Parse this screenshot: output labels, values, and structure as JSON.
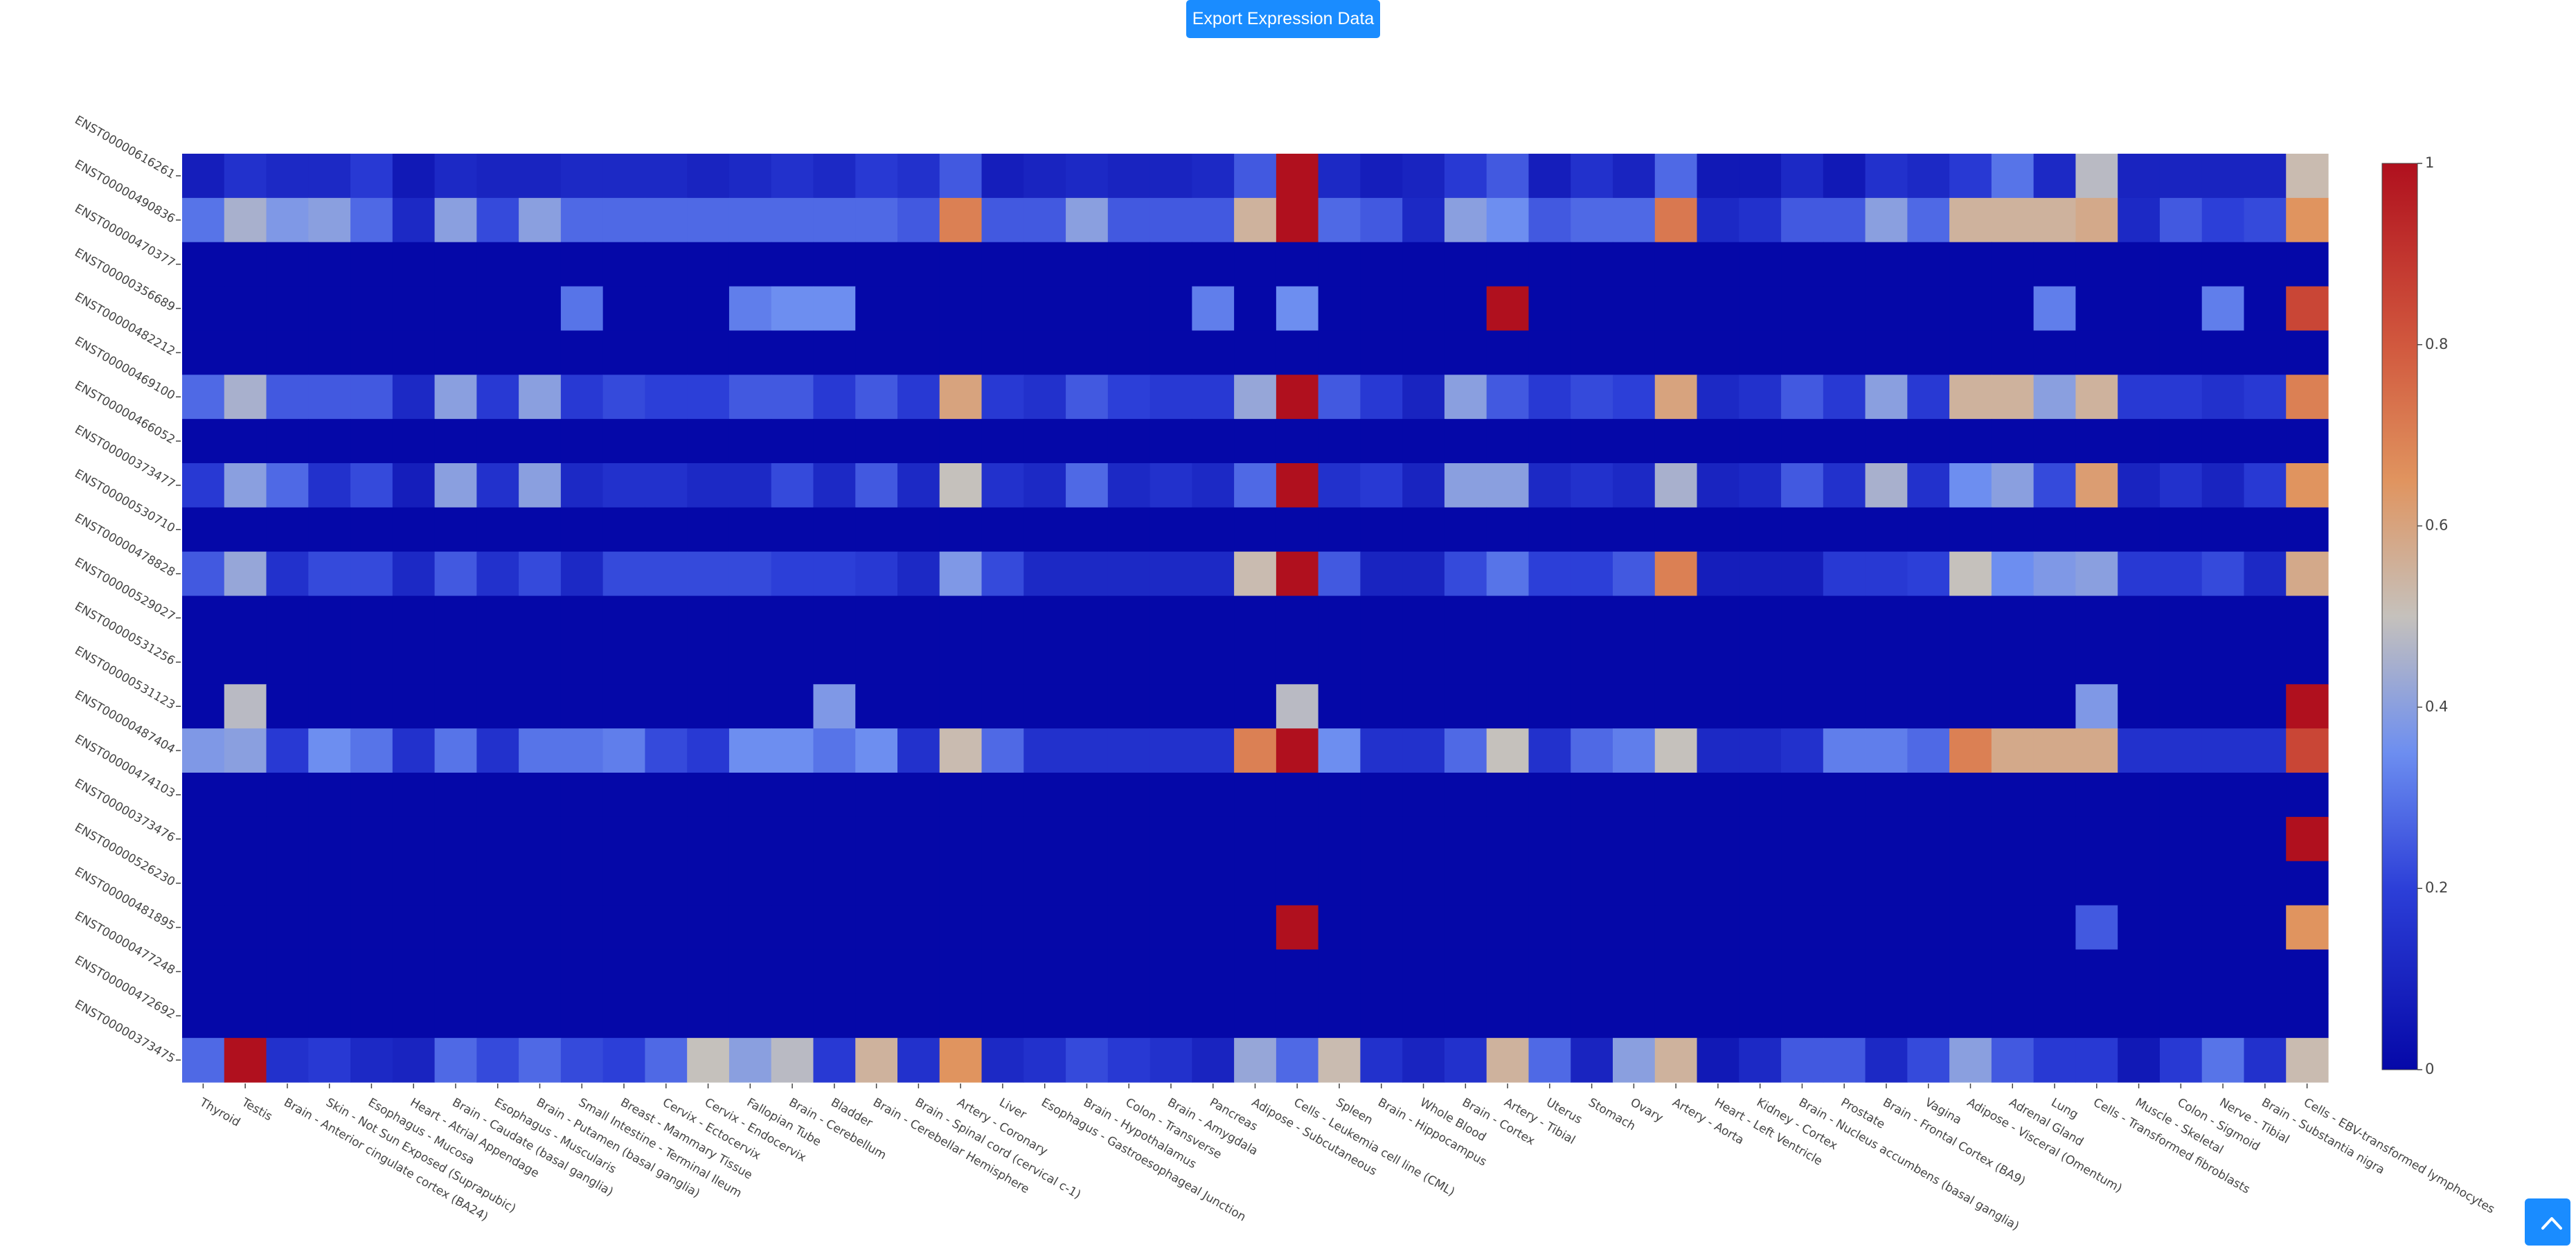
{
  "header": {
    "export_label": "Export Expression Data"
  },
  "scroll_top": {
    "icon": "chevron-up-icon"
  },
  "chart_data": {
    "type": "heatmap",
    "colorscale": {
      "min_color": "#0508a8",
      "mid_color": "#c5c1bc",
      "max_color": "#b0101e"
    },
    "zlim": [
      0,
      1
    ],
    "colorbar_ticks": [
      "0",
      "0.2",
      "0.4",
      "0.6",
      "0.8",
      "1"
    ],
    "columns": [
      "Thyroid",
      "Testis",
      "Brain - Anterior cingulate cortex (BA24)",
      "Skin - Not Sun Exposed (Suprapubic)",
      "Esophagus - Mucosa",
      "Heart - Atrial Appendage",
      "Brain - Caudate (basal ganglia)",
      "Esophagus - Muscularis",
      "Brain - Putamen (basal ganglia)",
      "Small Intestine - Terminal Ileum",
      "Breast - Mammary Tissue",
      "Cervix - Ectocervix",
      "Cervix - Endocervix",
      "Fallopian Tube",
      "Brain - Cerebellum",
      "Bladder",
      "Brain - Cerebellar Hemisphere",
      "Brain - Spinal cord (cervical c-1)",
      "Artery - Coronary",
      "Liver",
      "Esophagus - Gastroesophageal Junction",
      "Brain - Hypothalamus",
      "Colon - Transverse",
      "Brain - Amygdala",
      "Pancreas",
      "Adipose - Subcutaneous",
      "Cells - Leukemia cell line (CML)",
      "Spleen",
      "Brain - Hippocampus",
      "Whole Blood",
      "Brain - Cortex",
      "Artery - Tibial",
      "Uterus",
      "Stomach",
      "Ovary",
      "Artery - Aorta",
      "Heart - Left Ventricle",
      "Kidney - Cortex",
      "Brain - Nucleus accumbens (basal ganglia)",
      "Prostate",
      "Brain - Frontal Cortex (BA9)",
      "Vagina",
      "Adipose - Visceral (Omentum)",
      "Adrenal Gland",
      "Lung",
      "Cells - Transformed fibroblasts",
      "Muscle - Skeletal",
      "Colon - Sigmoid",
      "Nerve - Tibial",
      "Brain - Substantia nigra",
      "Cells - EBV-transformed lymphocytes"
    ],
    "rows": [
      "ENST00000616261",
      "ENST00000490836",
      "ENST00000470377",
      "ENST00000356689",
      "ENST00000482212",
      "ENST00000469100",
      "ENST00000466052",
      "ENST00000373477",
      "ENST00000530710",
      "ENST00000478828",
      "ENST00000529027",
      "ENST00000531256",
      "ENST00000531123",
      "ENST00000487404",
      "ENST00000474103",
      "ENST00000373476",
      "ENST00000526230",
      "ENST00000481895",
      "ENST00000477248",
      "ENST00000472692",
      "ENST00000373475"
    ],
    "values": [
      [
        0.08,
        0.15,
        0.12,
        0.12,
        0.18,
        0.06,
        0.12,
        0.1,
        0.1,
        0.12,
        0.12,
        0.12,
        0.1,
        0.12,
        0.15,
        0.12,
        0.18,
        0.15,
        0.25,
        0.08,
        0.1,
        0.12,
        0.1,
        0.1,
        0.12,
        0.25,
        1.0,
        0.12,
        0.08,
        0.1,
        0.18,
        0.25,
        0.08,
        0.15,
        0.1,
        0.28,
        0.06,
        0.06,
        0.12,
        0.06,
        0.15,
        0.12,
        0.18,
        0.3,
        0.12,
        0.48,
        0.1,
        0.1,
        0.1,
        0.1,
        0.52
      ],
      [
        0.3,
        0.45,
        0.38,
        0.4,
        0.28,
        0.12,
        0.4,
        0.22,
        0.4,
        0.28,
        0.28,
        0.28,
        0.28,
        0.28,
        0.28,
        0.28,
        0.28,
        0.25,
        0.7,
        0.25,
        0.25,
        0.4,
        0.25,
        0.25,
        0.25,
        0.55,
        1.0,
        0.28,
        0.25,
        0.12,
        0.4,
        0.35,
        0.25,
        0.28,
        0.28,
        0.72,
        0.12,
        0.15,
        0.25,
        0.25,
        0.4,
        0.28,
        0.55,
        0.55,
        0.55,
        0.58,
        0.12,
        0.25,
        0.2,
        0.22,
        0.65
      ],
      [
        0.0,
        0.0,
        0.0,
        0.0,
        0.0,
        0.0,
        0.0,
        0.0,
        0.0,
        0.0,
        0.0,
        0.0,
        0.0,
        0.0,
        0.0,
        0.0,
        0.0,
        0.0,
        0.0,
        0.0,
        0.0,
        0.0,
        0.0,
        0.0,
        0.0,
        0.0,
        0.0,
        0.0,
        0.0,
        0.0,
        0.0,
        0.0,
        0.0,
        0.0,
        0.0,
        0.0,
        0.0,
        0.0,
        0.0,
        0.0,
        0.0,
        0.0,
        0.0,
        0.0,
        0.0,
        0.0,
        0.0,
        0.0,
        0.0,
        0.0,
        0.0
      ],
      [
        0.0,
        0.0,
        0.0,
        0.0,
        0.0,
        0.0,
        0.0,
        0.0,
        0.0,
        0.3,
        0.0,
        0.0,
        0.0,
        0.32,
        0.35,
        0.35,
        0.0,
        0.0,
        0.0,
        0.0,
        0.0,
        0.0,
        0.0,
        0.0,
        0.32,
        0.0,
        0.35,
        0.0,
        0.0,
        0.0,
        0.0,
        1.0,
        0.0,
        0.0,
        0.0,
        0.0,
        0.0,
        0.0,
        0.0,
        0.0,
        0.0,
        0.0,
        0.0,
        0.0,
        0.32,
        0.0,
        0.0,
        0.0,
        0.32,
        0.0,
        0.85
      ],
      [
        0.0,
        0.0,
        0.0,
        0.0,
        0.0,
        0.0,
        0.0,
        0.0,
        0.0,
        0.0,
        0.0,
        0.0,
        0.0,
        0.0,
        0.0,
        0.0,
        0.0,
        0.0,
        0.0,
        0.0,
        0.0,
        0.0,
        0.0,
        0.0,
        0.0,
        0.0,
        0.0,
        0.0,
        0.0,
        0.0,
        0.0,
        0.0,
        0.0,
        0.0,
        0.0,
        0.0,
        0.0,
        0.0,
        0.0,
        0.0,
        0.0,
        0.0,
        0.0,
        0.0,
        0.0,
        0.0,
        0.0,
        0.0,
        0.0,
        0.0,
        0.0
      ],
      [
        0.28,
        0.45,
        0.25,
        0.25,
        0.25,
        0.12,
        0.4,
        0.18,
        0.4,
        0.18,
        0.22,
        0.2,
        0.2,
        0.25,
        0.25,
        0.18,
        0.25,
        0.18,
        0.6,
        0.18,
        0.15,
        0.25,
        0.2,
        0.18,
        0.18,
        0.42,
        1.0,
        0.25,
        0.18,
        0.1,
        0.4,
        0.25,
        0.18,
        0.22,
        0.2,
        0.6,
        0.12,
        0.15,
        0.25,
        0.18,
        0.4,
        0.18,
        0.55,
        0.55,
        0.4,
        0.55,
        0.18,
        0.18,
        0.15,
        0.18,
        0.7
      ],
      [
        0.0,
        0.0,
        0.0,
        0.0,
        0.0,
        0.0,
        0.0,
        0.0,
        0.0,
        0.0,
        0.0,
        0.0,
        0.0,
        0.0,
        0.0,
        0.0,
        0.0,
        0.0,
        0.0,
        0.0,
        0.0,
        0.0,
        0.0,
        0.0,
        0.0,
        0.0,
        0.0,
        0.0,
        0.0,
        0.0,
        0.0,
        0.0,
        0.0,
        0.0,
        0.0,
        0.0,
        0.0,
        0.0,
        0.0,
        0.0,
        0.0,
        0.0,
        0.0,
        0.0,
        0.0,
        0.0,
        0.0,
        0.0,
        0.0,
        0.0,
        0.0
      ],
      [
        0.18,
        0.4,
        0.28,
        0.15,
        0.22,
        0.08,
        0.4,
        0.15,
        0.4,
        0.12,
        0.15,
        0.15,
        0.12,
        0.12,
        0.22,
        0.12,
        0.25,
        0.12,
        0.5,
        0.15,
        0.12,
        0.28,
        0.12,
        0.15,
        0.12,
        0.28,
        1.0,
        0.15,
        0.18,
        0.1,
        0.4,
        0.4,
        0.12,
        0.15,
        0.12,
        0.45,
        0.1,
        0.12,
        0.25,
        0.15,
        0.45,
        0.15,
        0.35,
        0.4,
        0.22,
        0.62,
        0.1,
        0.15,
        0.1,
        0.18,
        0.65
      ],
      [
        0.0,
        0.0,
        0.0,
        0.0,
        0.0,
        0.0,
        0.0,
        0.0,
        0.0,
        0.0,
        0.0,
        0.0,
        0.0,
        0.0,
        0.0,
        0.0,
        0.0,
        0.0,
        0.0,
        0.0,
        0.0,
        0.0,
        0.0,
        0.0,
        0.0,
        0.0,
        0.0,
        0.0,
        0.0,
        0.0,
        0.0,
        0.0,
        0.0,
        0.0,
        0.0,
        0.0,
        0.0,
        0.0,
        0.0,
        0.0,
        0.0,
        0.0,
        0.0,
        0.0,
        0.0,
        0.0,
        0.0,
        0.0,
        0.0,
        0.0,
        0.0
      ],
      [
        0.25,
        0.42,
        0.15,
        0.22,
        0.22,
        0.12,
        0.25,
        0.15,
        0.22,
        0.12,
        0.22,
        0.22,
        0.22,
        0.22,
        0.2,
        0.2,
        0.18,
        0.12,
        0.38,
        0.22,
        0.12,
        0.12,
        0.12,
        0.12,
        0.12,
        0.52,
        1.0,
        0.25,
        0.1,
        0.1,
        0.22,
        0.3,
        0.2,
        0.2,
        0.25,
        0.7,
        0.08,
        0.08,
        0.08,
        0.18,
        0.18,
        0.2,
        0.5,
        0.35,
        0.38,
        0.4,
        0.18,
        0.18,
        0.22,
        0.12,
        0.58
      ],
      [
        0.0,
        0.0,
        0.0,
        0.0,
        0.0,
        0.0,
        0.0,
        0.0,
        0.0,
        0.0,
        0.0,
        0.0,
        0.0,
        0.0,
        0.0,
        0.0,
        0.0,
        0.0,
        0.0,
        0.0,
        0.0,
        0.0,
        0.0,
        0.0,
        0.0,
        0.0,
        0.0,
        0.0,
        0.0,
        0.0,
        0.0,
        0.0,
        0.0,
        0.0,
        0.0,
        0.0,
        0.0,
        0.0,
        0.0,
        0.0,
        0.0,
        0.0,
        0.0,
        0.0,
        0.0,
        0.0,
        0.0,
        0.0,
        0.0,
        0.0,
        0.0
      ],
      [
        0.0,
        0.0,
        0.0,
        0.0,
        0.0,
        0.0,
        0.0,
        0.0,
        0.0,
        0.0,
        0.0,
        0.0,
        0.0,
        0.0,
        0.0,
        0.0,
        0.0,
        0.0,
        0.0,
        0.0,
        0.0,
        0.0,
        0.0,
        0.0,
        0.0,
        0.0,
        0.0,
        0.0,
        0.0,
        0.0,
        0.0,
        0.0,
        0.0,
        0.0,
        0.0,
        0.0,
        0.0,
        0.0,
        0.0,
        0.0,
        0.0,
        0.0,
        0.0,
        0.0,
        0.0,
        0.0,
        0.0,
        0.0,
        0.0,
        0.0,
        0.0
      ],
      [
        0.0,
        0.48,
        0.0,
        0.0,
        0.0,
        0.0,
        0.0,
        0.0,
        0.0,
        0.0,
        0.0,
        0.0,
        0.0,
        0.0,
        0.0,
        0.38,
        0.0,
        0.0,
        0.0,
        0.0,
        0.0,
        0.0,
        0.0,
        0.0,
        0.0,
        0.0,
        0.48,
        0.0,
        0.0,
        0.0,
        0.0,
        0.0,
        0.0,
        0.0,
        0.0,
        0.0,
        0.0,
        0.0,
        0.0,
        0.0,
        0.0,
        0.0,
        0.0,
        0.0,
        0.0,
        0.38,
        0.0,
        0.0,
        0.0,
        0.0,
        1.0
      ],
      [
        0.38,
        0.4,
        0.18,
        0.35,
        0.3,
        0.15,
        0.3,
        0.15,
        0.3,
        0.3,
        0.32,
        0.22,
        0.18,
        0.35,
        0.35,
        0.3,
        0.35,
        0.15,
        0.52,
        0.28,
        0.15,
        0.15,
        0.15,
        0.15,
        0.15,
        0.7,
        1.0,
        0.35,
        0.15,
        0.15,
        0.28,
        0.5,
        0.15,
        0.28,
        0.32,
        0.5,
        0.12,
        0.12,
        0.15,
        0.32,
        0.32,
        0.28,
        0.7,
        0.58,
        0.58,
        0.58,
        0.15,
        0.15,
        0.15,
        0.15,
        0.85
      ],
      [
        0.0,
        0.0,
        0.0,
        0.0,
        0.0,
        0.0,
        0.0,
        0.0,
        0.0,
        0.0,
        0.0,
        0.0,
        0.0,
        0.0,
        0.0,
        0.0,
        0.0,
        0.0,
        0.0,
        0.0,
        0.0,
        0.0,
        0.0,
        0.0,
        0.0,
        0.0,
        0.0,
        0.0,
        0.0,
        0.0,
        0.0,
        0.0,
        0.0,
        0.0,
        0.0,
        0.0,
        0.0,
        0.0,
        0.0,
        0.0,
        0.0,
        0.0,
        0.0,
        0.0,
        0.0,
        0.0,
        0.0,
        0.0,
        0.0,
        0.0,
        0.0
      ],
      [
        0.0,
        0.0,
        0.0,
        0.0,
        0.0,
        0.0,
        0.0,
        0.0,
        0.0,
        0.0,
        0.0,
        0.0,
        0.0,
        0.0,
        0.0,
        0.0,
        0.0,
        0.0,
        0.0,
        0.0,
        0.0,
        0.0,
        0.0,
        0.0,
        0.0,
        0.0,
        0.0,
        0.0,
        0.0,
        0.0,
        0.0,
        0.0,
        0.0,
        0.0,
        0.0,
        0.0,
        0.0,
        0.0,
        0.0,
        0.0,
        0.0,
        0.0,
        0.0,
        0.0,
        0.0,
        0.0,
        0.0,
        0.0,
        0.0,
        0.0,
        1.0
      ],
      [
        0.0,
        0.0,
        0.0,
        0.0,
        0.0,
        0.0,
        0.0,
        0.0,
        0.0,
        0.0,
        0.0,
        0.0,
        0.0,
        0.0,
        0.0,
        0.0,
        0.0,
        0.0,
        0.0,
        0.0,
        0.0,
        0.0,
        0.0,
        0.0,
        0.0,
        0.0,
        0.0,
        0.0,
        0.0,
        0.0,
        0.0,
        0.0,
        0.0,
        0.0,
        0.0,
        0.0,
        0.0,
        0.0,
        0.0,
        0.0,
        0.0,
        0.0,
        0.0,
        0.0,
        0.0,
        0.0,
        0.0,
        0.0,
        0.0,
        0.0,
        0.0
      ],
      [
        0.0,
        0.0,
        0.0,
        0.0,
        0.0,
        0.0,
        0.0,
        0.0,
        0.0,
        0.0,
        0.0,
        0.0,
        0.0,
        0.0,
        0.0,
        0.0,
        0.0,
        0.0,
        0.0,
        0.0,
        0.0,
        0.0,
        0.0,
        0.0,
        0.0,
        0.0,
        1.0,
        0.0,
        0.0,
        0.0,
        0.0,
        0.0,
        0.0,
        0.0,
        0.0,
        0.0,
        0.0,
        0.0,
        0.0,
        0.0,
        0.0,
        0.0,
        0.0,
        0.0,
        0.0,
        0.25,
        0.0,
        0.0,
        0.0,
        0.0,
        0.65
      ],
      [
        0.0,
        0.0,
        0.0,
        0.0,
        0.0,
        0.0,
        0.0,
        0.0,
        0.0,
        0.0,
        0.0,
        0.0,
        0.0,
        0.0,
        0.0,
        0.0,
        0.0,
        0.0,
        0.0,
        0.0,
        0.0,
        0.0,
        0.0,
        0.0,
        0.0,
        0.0,
        0.0,
        0.0,
        0.0,
        0.0,
        0.0,
        0.0,
        0.0,
        0.0,
        0.0,
        0.0,
        0.0,
        0.0,
        0.0,
        0.0,
        0.0,
        0.0,
        0.0,
        0.0,
        0.0,
        0.0,
        0.0,
        0.0,
        0.0,
        0.0,
        0.0
      ],
      [
        0.0,
        0.0,
        0.0,
        0.0,
        0.0,
        0.0,
        0.0,
        0.0,
        0.0,
        0.0,
        0.0,
        0.0,
        0.0,
        0.0,
        0.0,
        0.0,
        0.0,
        0.0,
        0.0,
        0.0,
        0.0,
        0.0,
        0.0,
        0.0,
        0.0,
        0.0,
        0.0,
        0.0,
        0.0,
        0.0,
        0.0,
        0.0,
        0.0,
        0.0,
        0.0,
        0.0,
        0.0,
        0.0,
        0.0,
        0.0,
        0.0,
        0.0,
        0.0,
        0.0,
        0.0,
        0.0,
        0.0,
        0.0,
        0.0,
        0.0,
        0.0
      ],
      [
        0.28,
        1.0,
        0.15,
        0.18,
        0.12,
        0.1,
        0.28,
        0.22,
        0.28,
        0.22,
        0.2,
        0.28,
        0.5,
        0.4,
        0.48,
        0.18,
        0.55,
        0.15,
        0.65,
        0.12,
        0.15,
        0.22,
        0.18,
        0.15,
        0.1,
        0.42,
        0.28,
        0.52,
        0.15,
        0.1,
        0.15,
        0.55,
        0.28,
        0.1,
        0.4,
        0.55,
        0.06,
        0.12,
        0.25,
        0.25,
        0.12,
        0.22,
        0.4,
        0.25,
        0.18,
        0.18,
        0.06,
        0.18,
        0.3,
        0.15,
        0.52
      ]
    ]
  }
}
